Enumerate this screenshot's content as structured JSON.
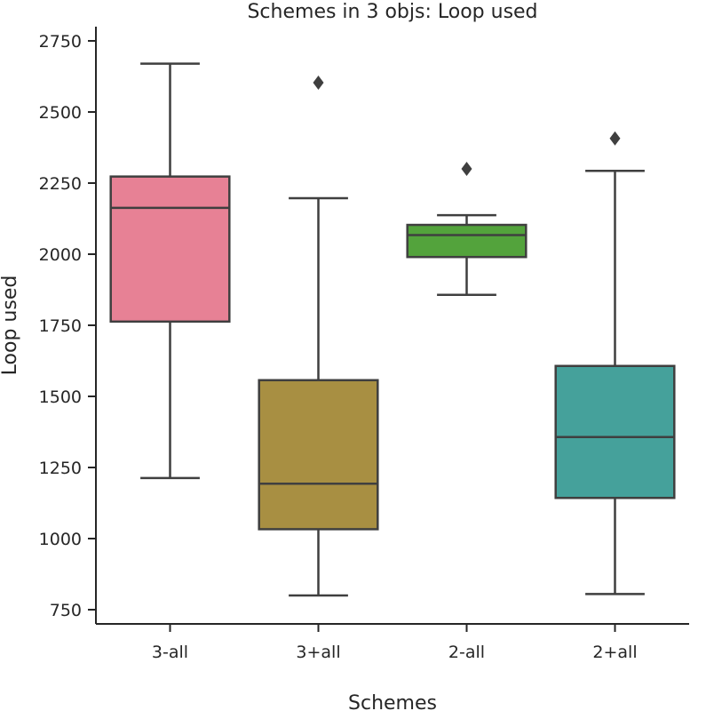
{
  "chart_data": {
    "type": "box",
    "title": "Schemes in 3 objs: Loop used",
    "xlabel": "Schemes",
    "ylabel": "Loop used",
    "ylim": [
      700,
      2800
    ],
    "yticks": [
      750,
      1000,
      1250,
      1500,
      1750,
      2000,
      2250,
      2500,
      2750
    ],
    "grid": false,
    "categories": [
      "3-all",
      "3+all",
      "2-all",
      "2+all"
    ],
    "boxes": [
      {
        "category": "3-all",
        "whisker_low": 1213,
        "q1": 1763,
        "median": 2163,
        "q3": 2273,
        "whisker_high": 2670,
        "outliers": [],
        "color": "#e78195"
      },
      {
        "category": "3+all",
        "whisker_low": 800,
        "q1": 1033,
        "median": 1193,
        "q3": 1557,
        "whisker_high": 2197,
        "outliers": [
          2603
        ],
        "color": "#a88f42"
      },
      {
        "category": "2-all",
        "whisker_low": 1857,
        "q1": 1990,
        "median": 2067,
        "q3": 2103,
        "whisker_high": 2137,
        "outliers": [
          2300
        ],
        "color": "#53a33c"
      },
      {
        "category": "2+all",
        "whisker_low": 805,
        "q1": 1143,
        "median": 1357,
        "q3": 1607,
        "whisker_high": 2293,
        "outliers": [
          2407
        ],
        "color": "#45a19b"
      }
    ]
  }
}
